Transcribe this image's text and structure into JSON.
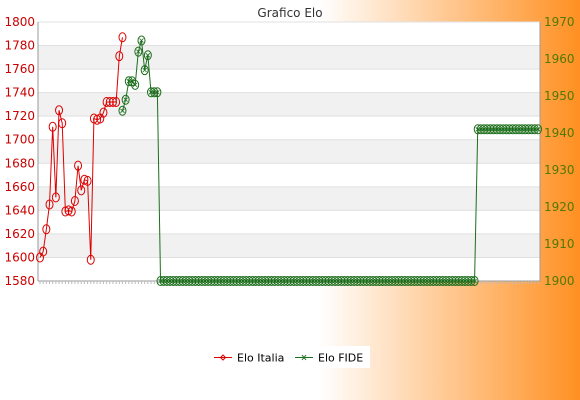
{
  "colors": {
    "background_left": "#ffffff",
    "background_right": "#ff9022",
    "series_italia": "#dd0000",
    "series_fide": "#1c6e1c",
    "axis_left": "#cc0000",
    "axis_right": "#4d7a00"
  },
  "chart_data": {
    "type": "line",
    "title": "Grafico Elo",
    "grid": true,
    "legend_position": "bottom",
    "left_axis": {
      "ylim": [
        1580,
        1800
      ],
      "ticks": [
        1580,
        1600,
        1620,
        1640,
        1660,
        1680,
        1700,
        1720,
        1740,
        1760,
        1780,
        1800
      ]
    },
    "right_axis": {
      "ylim": [
        1900,
        1970
      ],
      "ticks": [
        1900,
        1910,
        1920,
        1930,
        1940,
        1950,
        1960,
        1970
      ]
    },
    "series": [
      {
        "name": "Elo Italia",
        "axis": "left",
        "marker": "diamond",
        "values": [
          1600,
          1605,
          1624,
          1645,
          1711,
          1651,
          1725,
          1714,
          1639,
          1640,
          1639,
          1648,
          1678,
          1657,
          1666,
          1665,
          1598,
          1718,
          1717,
          1718,
          1723,
          1732,
          1732,
          1732,
          1732,
          1771,
          1787
        ]
      },
      {
        "name": "Elo FIDE",
        "axis": "right",
        "marker": "x",
        "start_index": 26,
        "values": [
          1946,
          1949,
          1954,
          1954,
          1953,
          1962,
          1965,
          1957,
          1961,
          1951,
          1951,
          1951,
          1900,
          1900,
          1900,
          1900,
          1900,
          1900,
          1900,
          1900,
          1900,
          1900,
          1900,
          1900,
          1900,
          1900,
          1900,
          1900,
          1900,
          1900,
          1900,
          1900,
          1900,
          1900,
          1900,
          1900,
          1900,
          1900,
          1900,
          1900,
          1900,
          1900,
          1900,
          1900,
          1900,
          1900,
          1900,
          1900,
          1900,
          1900,
          1900,
          1900,
          1900,
          1900,
          1900,
          1900,
          1900,
          1900,
          1900,
          1900,
          1900,
          1900,
          1900,
          1900,
          1900,
          1900,
          1900,
          1900,
          1900,
          1900,
          1900,
          1900,
          1900,
          1900,
          1900,
          1900,
          1900,
          1900,
          1900,
          1900,
          1900,
          1900,
          1900,
          1900,
          1900,
          1900,
          1900,
          1900,
          1900,
          1900,
          1900,
          1900,
          1900,
          1900,
          1900,
          1900,
          1900,
          1900,
          1900,
          1900,
          1900,
          1900,
          1900,
          1900,
          1900,
          1900,
          1900,
          1900,
          1900,
          1900,
          1900,
          1900,
          1941,
          1941,
          1941,
          1941,
          1941,
          1941,
          1941,
          1941,
          1941,
          1941,
          1941,
          1941,
          1941,
          1941,
          1941,
          1941,
          1941,
          1941,
          1941,
          1941
        ]
      }
    ]
  }
}
